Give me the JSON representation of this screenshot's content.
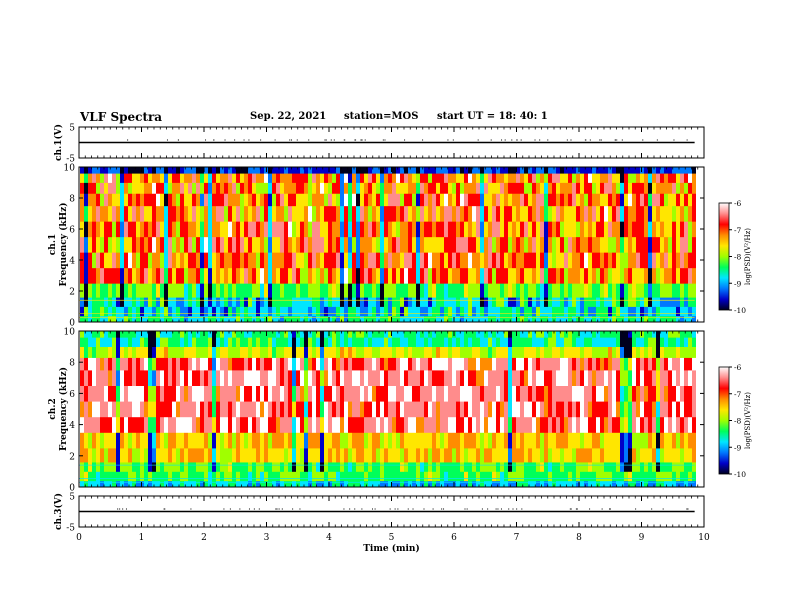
{
  "header": {
    "title": "VLF Spectra",
    "date": "Sep. 22, 2021",
    "station": "station=MOS",
    "start": "start  UT  =   18: 40: 1"
  },
  "chart_data": [
    {
      "type": "line",
      "panel": "ch1-voltage",
      "ylabel": "ch.1(V)",
      "ylim": [
        -5,
        5
      ],
      "yticks": [
        "5",
        "-5"
      ],
      "xlim": [
        0,
        10
      ],
      "series": [
        {
          "values_x": [
            0,
            9.85
          ],
          "values_y": [
            0,
            0
          ]
        }
      ]
    },
    {
      "type": "heatmap",
      "panel": "ch1-spectrogram",
      "ylabel": "ch.1 Frequency (kHz)",
      "ylim": [
        0,
        10
      ],
      "yticks": [
        "0",
        "2",
        "4",
        "6",
        "8",
        "10"
      ],
      "xlim": [
        0,
        10
      ],
      "data_end_x": 9.85,
      "colorbar": {
        "label": "log(PSD)(V²/Hz)",
        "range": [
          -10,
          -6
        ],
        "ticks": [
          "-6",
          "-7",
          "-8",
          "-9",
          "-10"
        ]
      }
    },
    {
      "type": "heatmap",
      "panel": "ch2-spectrogram",
      "ylabel": "ch.2 Frequency (kHz)",
      "ylim": [
        0,
        10
      ],
      "yticks": [
        "0",
        "2",
        "4",
        "6",
        "8",
        "10"
      ],
      "xlim": [
        0,
        10
      ],
      "data_end_x": 9.85,
      "colorbar": {
        "label": "log(PSD)(V²/Hz)",
        "range": [
          -10,
          -6
        ],
        "ticks": [
          "-6",
          "-7",
          "-8",
          "-9",
          "-10"
        ]
      }
    },
    {
      "type": "line",
      "panel": "ch3-voltage",
      "ylabel": "ch.3(V)",
      "ylim": [
        -5,
        5
      ],
      "yticks": [
        "5",
        "-5"
      ],
      "xlim": [
        0,
        10
      ],
      "xlabel": "Time  (min)",
      "xticks": [
        "0",
        "1",
        "2",
        "3",
        "4",
        "5",
        "6",
        "7",
        "8",
        "9",
        "10"
      ],
      "series": [
        {
          "values_x": [
            0,
            9.85
          ],
          "values_y": [
            0,
            0
          ]
        }
      ]
    }
  ],
  "colors": {
    "colormap": [
      "#00001e",
      "#0000c8",
      "#0078ff",
      "#00e6ff",
      "#00ff5a",
      "#a0ff00",
      "#ffe600",
      "#ff8c00",
      "#ff0000",
      "#ff8c8c",
      "#ffffff"
    ]
  }
}
